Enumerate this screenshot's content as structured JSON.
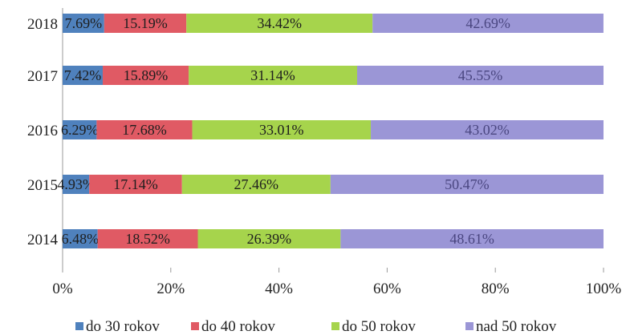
{
  "chart_data": {
    "type": "bar",
    "orientation": "horizontal",
    "stacked": "percent",
    "categories": [
      "2018",
      "2017",
      "2016",
      "2015",
      "2014"
    ],
    "series": [
      {
        "name": "do 30 rokov",
        "color": "#4f81bd",
        "values": [
          7.69,
          7.42,
          6.29,
          4.93,
          6.48
        ],
        "labels": [
          "7.69%",
          "7.42%",
          "6.29%",
          "4.93%",
          "6.48%"
        ]
      },
      {
        "name": "do 40 rokov",
        "color": "#e05a64",
        "values": [
          15.19,
          15.89,
          17.68,
          17.14,
          18.52
        ],
        "labels": [
          "15.19%",
          "15.89%",
          "17.68%",
          "17.14%",
          "18.52%"
        ]
      },
      {
        "name": "do 50 rokov",
        "color": "#a6d44c",
        "values": [
          34.42,
          31.14,
          33.01,
          27.46,
          26.39
        ],
        "labels": [
          "34.42%",
          "31.14%",
          "33.01%",
          "27.46%",
          "26.39%"
        ]
      },
      {
        "name": "nad 50 rokov",
        "color": "#9b96d6",
        "values": [
          42.69,
          45.55,
          43.02,
          50.47,
          48.61
        ],
        "labels": [
          "42.69%",
          "45.55%",
          "43.02%",
          "50.47%",
          "48.61%"
        ]
      }
    ],
    "x_ticks": [
      "0%",
      "20%",
      "40%",
      "60%",
      "80%",
      "100%"
    ],
    "xlim": [
      0,
      100
    ],
    "title": "",
    "xlabel": "",
    "ylabel": "",
    "grid": false,
    "legend_position": "bottom"
  }
}
